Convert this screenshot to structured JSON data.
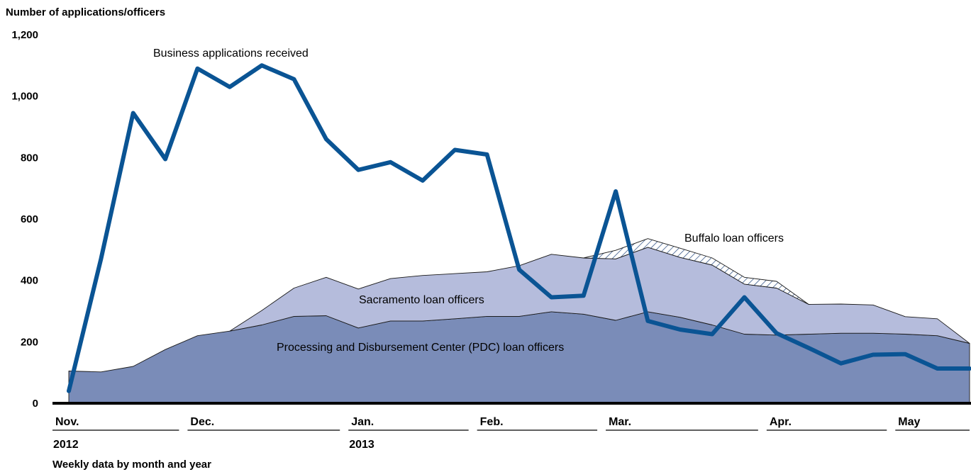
{
  "chart_data": {
    "type": "area",
    "ylabel": "Number of applications/officers",
    "xlabel": "Weekly data by month and year",
    "ylim": [
      0,
      1200
    ],
    "yticks": [
      "0",
      "200",
      "400",
      "600",
      "800",
      "1,000",
      "1,200"
    ],
    "yticks_values": [
      0,
      200,
      400,
      600,
      800,
      1000,
      1200
    ],
    "months": [
      {
        "label": "Nov.",
        "year": "2012"
      },
      {
        "label": "Dec.",
        "year": ""
      },
      {
        "label": "Jan.",
        "year": "2013"
      },
      {
        "label": "Feb.",
        "year": ""
      },
      {
        "label": "Mar.",
        "year": ""
      },
      {
        "label": "Apr.",
        "year": ""
      },
      {
        "label": "May",
        "year": ""
      }
    ],
    "month_start_week": [
      0,
      4,
      9,
      13,
      17,
      22,
      26
    ],
    "weeks": 29,
    "series": [
      {
        "name": "Processing and Disbursement Center (PDC) loan officers",
        "kind": "stacked-area",
        "color": "#7a8cb8",
        "values": [
          105,
          102,
          120,
          175,
          220,
          235,
          255,
          283,
          285,
          245,
          268,
          268,
          275,
          283,
          283,
          298,
          290,
          270,
          298,
          280,
          255,
          225,
          222,
          225,
          228,
          228,
          225,
          220,
          195
        ]
      },
      {
        "name": "Sacramento loan officers",
        "kind": "stacked-area",
        "color": "#b5bcdc",
        "values": [
          0,
          0,
          0,
          0,
          0,
          0,
          47,
          92,
          125,
          127,
          138,
          148,
          147,
          145,
          165,
          187,
          183,
          200,
          210,
          195,
          195,
          163,
          153,
          97,
          95,
          92,
          57,
          55,
          0
        ]
      },
      {
        "name": "Buffalo loan officers",
        "kind": "stacked-area",
        "color": "#ffffff",
        "hatch": "#3a5a8c",
        "values": [
          0,
          0,
          0,
          0,
          0,
          0,
          0,
          0,
          0,
          0,
          0,
          0,
          0,
          0,
          0,
          0,
          0,
          28,
          28,
          30,
          23,
          22,
          22,
          0,
          0,
          0,
          0,
          0,
          0
        ]
      },
      {
        "name": "Business applications received",
        "kind": "line",
        "color": "#0a5494",
        "values": [
          40,
          470,
          945,
          795,
          1090,
          1030,
          1100,
          1055,
          860,
          760,
          785,
          725,
          825,
          810,
          435,
          345,
          350,
          690,
          268,
          240,
          225,
          345,
          228,
          180,
          130,
          158,
          160,
          113,
          113
        ]
      }
    ],
    "annotations": {
      "applications": "Business applications received",
      "buffalo": "Buffalo loan officers",
      "sacramento": "Sacramento loan officers",
      "pdc": "Processing and Disbursement Center (PDC) loan officers"
    }
  }
}
